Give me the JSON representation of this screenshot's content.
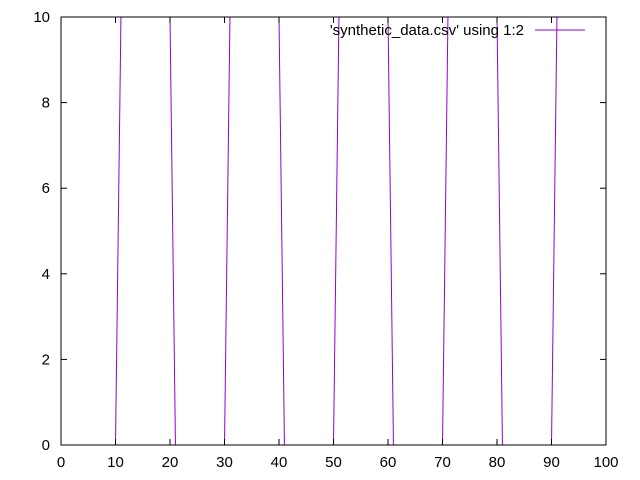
{
  "chart_data": {
    "type": "line",
    "title": "",
    "xlabel": "",
    "ylabel": "",
    "xlim": [
      0,
      100
    ],
    "ylim": [
      0,
      10
    ],
    "x_ticks": [
      0,
      10,
      20,
      30,
      40,
      50,
      60,
      70,
      80,
      90,
      100
    ],
    "y_ticks": [
      0,
      2,
      4,
      6,
      8,
      10
    ],
    "grid": false,
    "legend_position": "top-right",
    "series": [
      {
        "name": "'synthetic_data.csv' using 1:2",
        "color": "#9400d3",
        "x": [
          10.0,
          10.2,
          10.4,
          10.6,
          10.8,
          11.0,
          20.0,
          20.2,
          20.4,
          20.6,
          20.8,
          21.0,
          30.0,
          30.2,
          30.4,
          30.6,
          30.8,
          31.0,
          40.0,
          40.2,
          40.4,
          40.6,
          40.8,
          41.0,
          50.0,
          50.2,
          50.4,
          50.6,
          50.8,
          51.0,
          60.0,
          60.2,
          60.4,
          60.6,
          60.8,
          61.0,
          70.0,
          70.2,
          70.4,
          70.6,
          70.8,
          71.0,
          80.0,
          80.2,
          80.4,
          80.6,
          80.8,
          81.0,
          90.0,
          90.2,
          90.4,
          90.6,
          90.8,
          91.0
        ],
        "y": [
          0,
          2,
          4,
          6,
          8,
          10,
          10,
          8,
          6,
          4,
          2,
          0,
          0,
          2,
          4,
          6,
          8,
          10,
          10,
          8,
          6,
          4,
          2,
          0,
          0,
          2,
          4,
          6,
          8,
          10,
          10,
          8,
          6,
          4,
          2,
          0,
          0,
          2,
          4,
          6,
          8,
          10,
          10,
          8,
          6,
          4,
          2,
          0,
          0,
          2,
          4,
          6,
          8,
          10
        ]
      }
    ]
  }
}
